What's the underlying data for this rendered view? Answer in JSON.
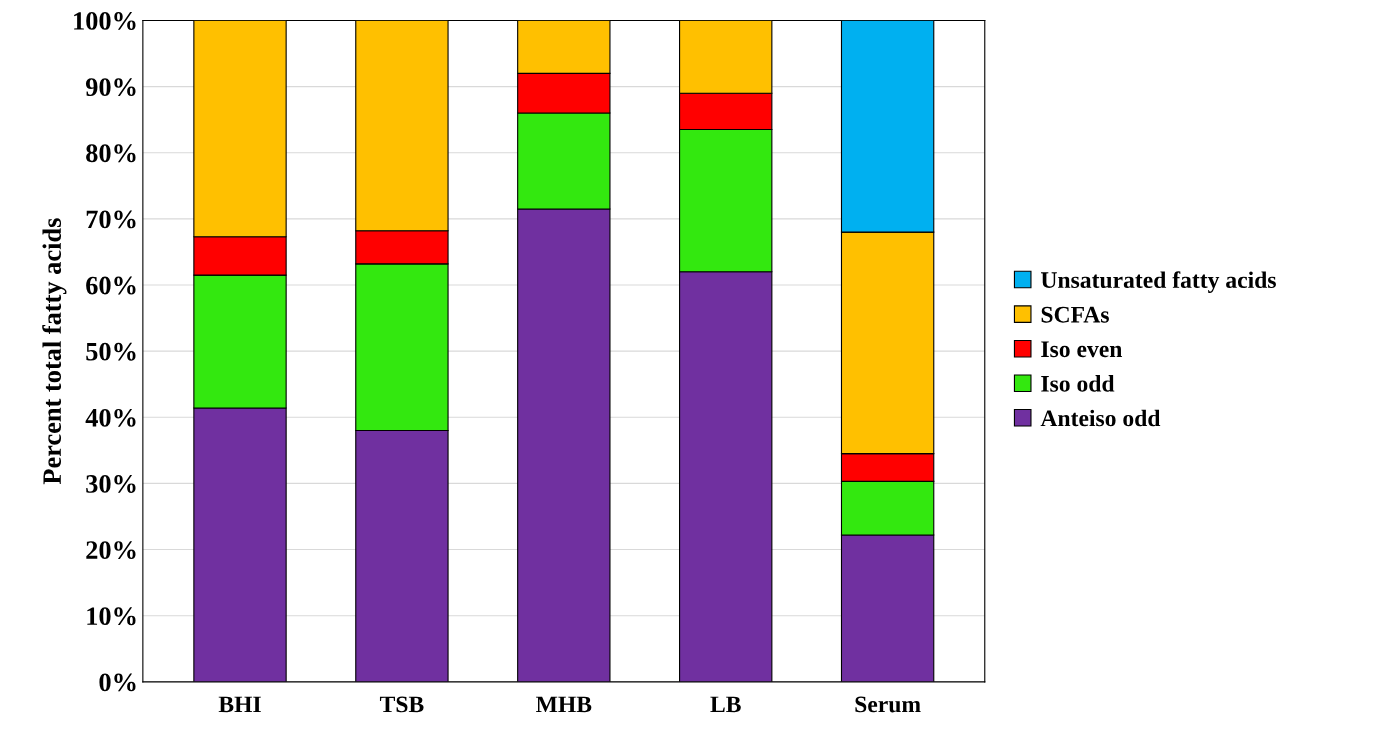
{
  "chart_data": {
    "type": "bar",
    "stacked": true,
    "ylabel": "Percent total fatty acids",
    "categories": [
      "BHI",
      "TSB",
      "MHB",
      "LB",
      "Serum"
    ],
    "series": [
      {
        "name": "Anteiso odd",
        "color": "#7030a0",
        "values": [
          41.4,
          38.0,
          71.5,
          62.0,
          22.2
        ]
      },
      {
        "name": "Iso odd",
        "color": "#33e80f",
        "values": [
          20.1,
          25.2,
          14.5,
          21.5,
          8.1
        ]
      },
      {
        "name": "Iso even",
        "color": "#ff0000",
        "values": [
          5.8,
          5.0,
          6.0,
          5.5,
          4.2
        ]
      },
      {
        "name": "SCFAs",
        "color": "#ffc000",
        "values": [
          32.7,
          31.8,
          8.0,
          11.0,
          33.5
        ]
      },
      {
        "name": "Unsaturated fatty acids",
        "color": "#00b0f0",
        "values": [
          null,
          null,
          null,
          null,
          32.0
        ]
      }
    ],
    "ylim": [
      0,
      100
    ],
    "yticks": [
      {
        "value": 0,
        "label": "0%"
      },
      {
        "value": 10,
        "label": "10%"
      },
      {
        "value": 20,
        "label": "20%"
      },
      {
        "value": 30,
        "label": "30%"
      },
      {
        "value": 40,
        "label": "40%"
      },
      {
        "value": 50,
        "label": "50%"
      },
      {
        "value": 60,
        "label": "60%"
      },
      {
        "value": 70,
        "label": "70%"
      },
      {
        "value": 80,
        "label": "80%"
      },
      {
        "value": 90,
        "label": "90%"
      },
      {
        "value": 100,
        "label": "100%"
      }
    ],
    "grid": "y",
    "legend": "right"
  }
}
